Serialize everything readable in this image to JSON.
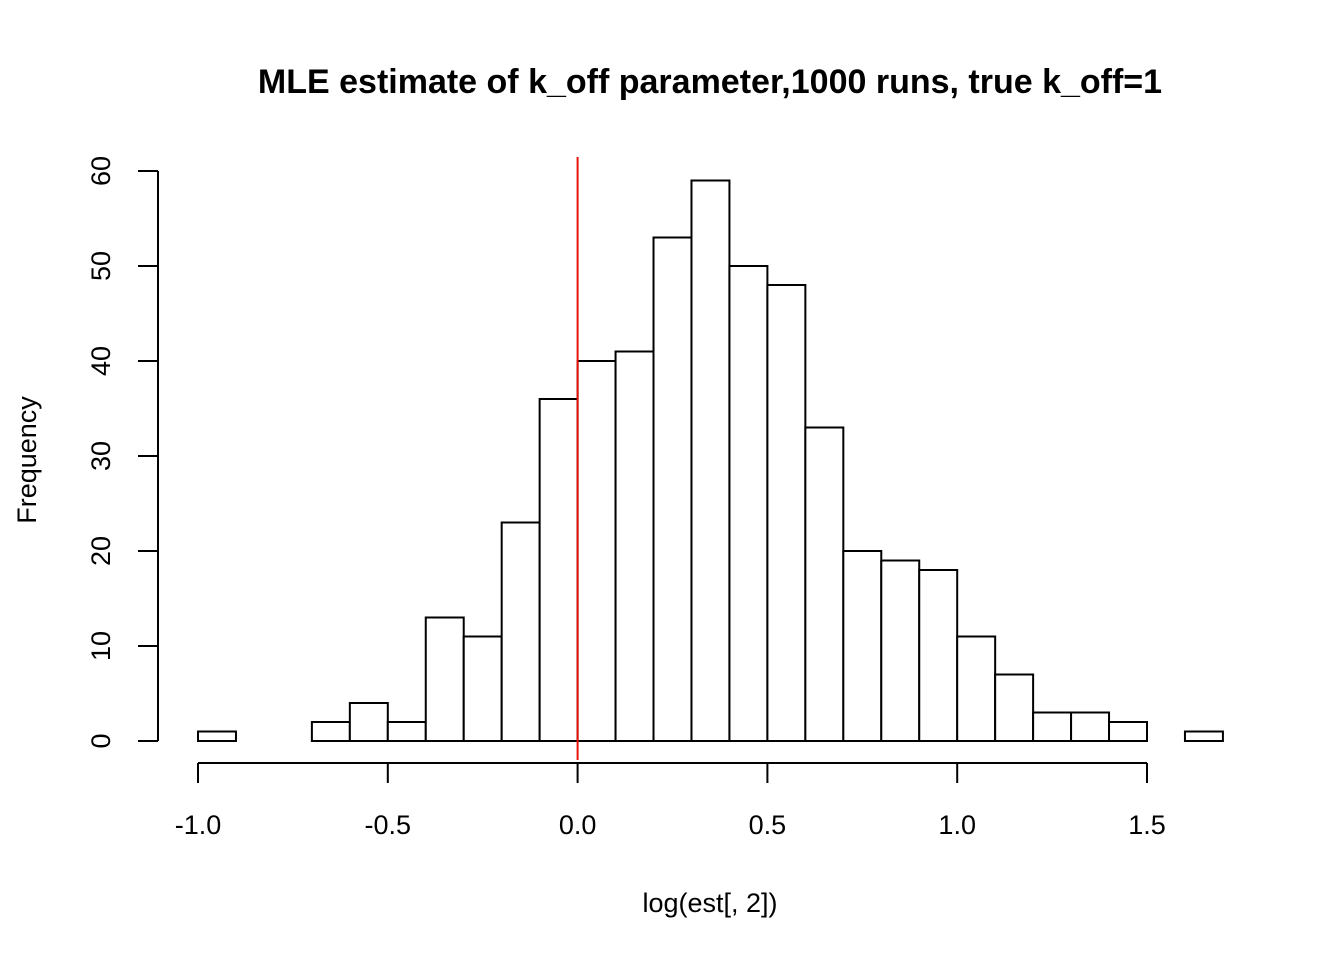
{
  "chart_data": {
    "type": "bar",
    "title": "MLE estimate of k_off parameter,1000 runs, true k_off=1",
    "xlabel": "log(est[, 2])",
    "ylabel": "Frequency",
    "bin_width": 0.1,
    "bin_starts": [
      -1.0,
      -0.9,
      -0.8,
      -0.7,
      -0.6,
      -0.5,
      -0.4,
      -0.3,
      -0.2,
      -0.1,
      0.0,
      0.1,
      0.2,
      0.3,
      0.4,
      0.5,
      0.6,
      0.7,
      0.8,
      0.9,
      1.0,
      1.1,
      1.2,
      1.3,
      1.4,
      1.5,
      1.6
    ],
    "values": [
      1,
      0,
      0,
      2,
      4,
      2,
      13,
      11,
      23,
      36,
      40,
      41,
      53,
      59,
      50,
      48,
      33,
      20,
      19,
      18,
      11,
      7,
      3,
      3,
      2,
      0,
      1
    ],
    "xlim": [
      -1.0,
      1.7
    ],
    "ylim": [
      0,
      60
    ],
    "x_ticks": [
      -1.0,
      -0.5,
      0.0,
      0.5,
      1.0,
      1.5
    ],
    "x_tick_labels": [
      "-1.0",
      "-0.5",
      "0.0",
      "0.5",
      "1.0",
      "1.5"
    ],
    "y_ticks": [
      0,
      10,
      20,
      30,
      40,
      50,
      60
    ],
    "y_tick_labels": [
      "0",
      "10",
      "20",
      "30",
      "40",
      "50",
      "60"
    ],
    "reference_line": {
      "x": 0.0,
      "color": "#e8120c"
    },
    "bar_fill": "#ffffff",
    "bar_stroke": "#000000",
    "grid": false
  }
}
